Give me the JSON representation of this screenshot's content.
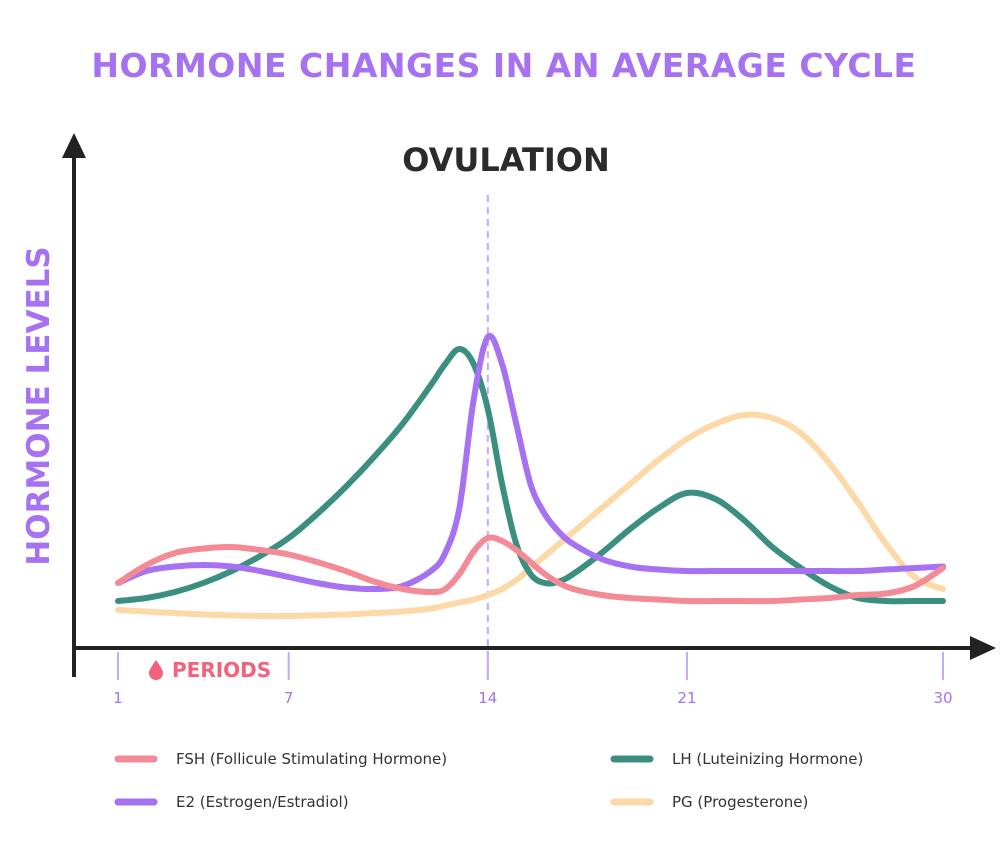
{
  "chart_data": {
    "type": "line",
    "title": "HORMONE CHANGES IN AN AVERAGE CYCLE",
    "ylabel": "HORMONE LEVELS",
    "xlabel": "",
    "marker_label": "OVULATION",
    "marker_day": 14,
    "period_label": "PERIODS",
    "period_icon": "drop-icon",
    "x_ticks": [
      1,
      7,
      14,
      21,
      30
    ],
    "x": [
      1,
      2,
      3,
      4,
      5,
      6,
      7,
      8,
      9,
      10,
      11,
      12,
      12.5,
      13,
      13.5,
      14,
      14.5,
      15,
      15.5,
      16,
      16.5,
      17,
      18,
      19,
      20,
      21,
      22,
      23,
      24,
      25,
      26,
      27,
      28,
      29,
      30
    ],
    "xlim": [
      1,
      30.5
    ],
    "ylim": [
      0,
      100
    ],
    "grid": false,
    "legend_position": "bottom",
    "series": [
      {
        "name": "FSH (Follicule Stimulating Hormone)",
        "color": "#f58a97",
        "values": [
          17,
          23,
          27,
          28.5,
          29,
          28,
          26.5,
          24,
          21,
          17.5,
          15,
          14,
          15,
          20,
          27.5,
          32,
          31,
          28,
          24,
          20,
          17,
          15,
          13,
          12,
          11.5,
          11,
          11,
          11,
          11,
          11.5,
          12,
          13,
          13.5,
          16,
          22
        ]
      },
      {
        "name": "LH (Luteinizing Hormone)",
        "color": "#3b8f81",
        "values": [
          11,
          12,
          14,
          17,
          21,
          26,
          32,
          40,
          49,
          59,
          70,
          83,
          90,
          95,
          90,
          75,
          50,
          30,
          20,
          17,
          17.5,
          20,
          27,
          35,
          42,
          47,
          45,
          38,
          29,
          22,
          16,
          12,
          11,
          11,
          11
        ]
      },
      {
        "name": "E2 (Estrogen/Estradiol)",
        "color": "#a672f2",
        "values": [
          17,
          21,
          22.5,
          23,
          22.5,
          21,
          19,
          17,
          15.5,
          15,
          16,
          21,
          27,
          42,
          78,
          99,
          90,
          70,
          50,
          40,
          34,
          30,
          25,
          22.5,
          21.5,
          21,
          21,
          21,
          21,
          21,
          21,
          21,
          21.5,
          22,
          22.5
        ]
      },
      {
        "name": "PG (Progesterone)",
        "color": "#fcd9a6",
        "values": [
          8,
          7.5,
          7,
          6.5,
          6.2,
          6,
          6,
          6.2,
          6.5,
          7,
          7.5,
          8.5,
          9.5,
          10.5,
          11.5,
          13,
          15,
          18,
          22,
          26,
          30,
          34,
          42,
          50,
          58,
          65,
          70,
          73,
          72,
          67,
          57,
          44,
          30,
          19,
          15
        ]
      }
    ]
  }
}
